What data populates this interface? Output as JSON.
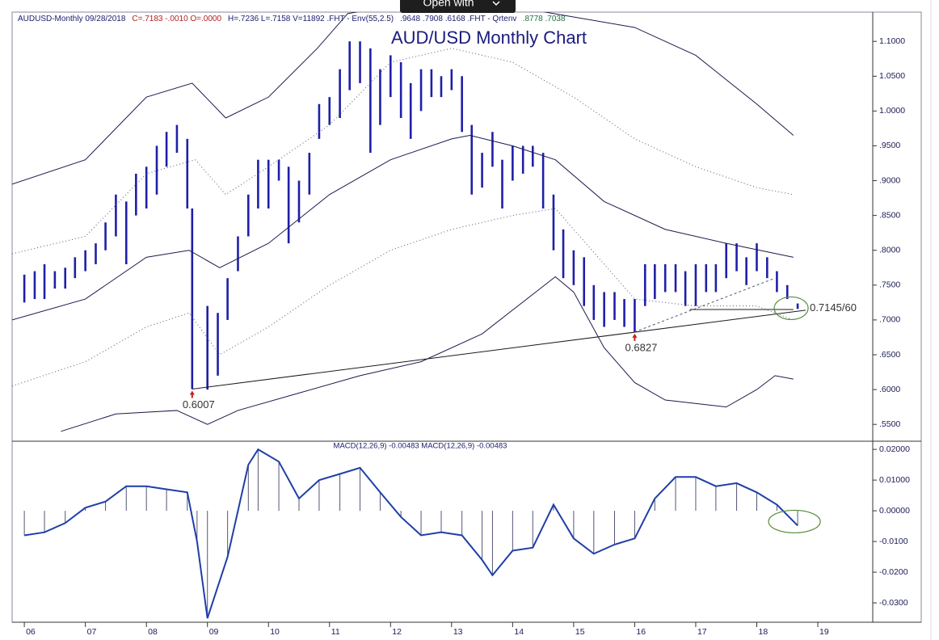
{
  "overlay": {
    "button": "Open with"
  },
  "chart_data": [
    {
      "type": "ohlc",
      "title": "AUD/USD Monthly Chart",
      "header": [
        {
          "text": "AUDUSD-Monthly  09/28/2018",
          "color": "#1b1b6e"
        },
        {
          "text": "C=.7183  -.0010  O=.0000",
          "color": "#b02020"
        },
        {
          "text": "H=.7236  L=.7158  V=11892  .FHT - Env(55,2.5)",
          "color": "#1b1b6e"
        },
        {
          "text": ".9648   .7908   .6168  .FHT - Qrtenv",
          "color": "#1b1b6e"
        },
        {
          "text": ".8778   .7038",
          "color": "#207040"
        }
      ],
      "x": [
        2006.0,
        2006.17,
        2006.33,
        2006.5,
        2006.67,
        2006.83,
        2007.0,
        2007.17,
        2007.33,
        2007.5,
        2007.67,
        2007.83,
        2008.0,
        2008.17,
        2008.33,
        2008.5,
        2008.67,
        2008.75,
        2009.0,
        2009.17,
        2009.33,
        2009.5,
        2009.67,
        2009.83,
        2010.0,
        2010.17,
        2010.33,
        2010.5,
        2010.67,
        2010.83,
        2011.0,
        2011.17,
        2011.33,
        2011.5,
        2011.67,
        2011.83,
        2012.0,
        2012.17,
        2012.33,
        2012.5,
        2012.67,
        2012.83,
        2013.0,
        2013.17,
        2013.33,
        2013.5,
        2013.67,
        2013.83,
        2014.0,
        2014.17,
        2014.33,
        2014.5,
        2014.67,
        2014.83,
        2015.0,
        2015.17,
        2015.33,
        2015.5,
        2015.67,
        2015.83,
        2016.0,
        2016.17,
        2016.33,
        2016.5,
        2016.67,
        2016.83,
        2017.0,
        2017.17,
        2017.33,
        2017.5,
        2017.67,
        2017.83,
        2018.0,
        2018.17,
        2018.33,
        2018.5,
        2018.67
      ],
      "high": [
        0.765,
        0.77,
        0.78,
        0.77,
        0.775,
        0.79,
        0.8,
        0.81,
        0.84,
        0.88,
        0.87,
        0.91,
        0.92,
        0.95,
        0.97,
        0.98,
        0.96,
        0.86,
        0.72,
        0.71,
        0.76,
        0.82,
        0.88,
        0.93,
        0.93,
        0.93,
        0.92,
        0.9,
        0.94,
        1.01,
        1.02,
        1.06,
        1.1,
        1.1,
        1.09,
        1.06,
        1.08,
        1.07,
        1.04,
        1.06,
        1.06,
        1.05,
        1.06,
        1.05,
        0.98,
        0.94,
        0.97,
        0.93,
        0.95,
        0.95,
        0.95,
        0.94,
        0.88,
        0.83,
        0.8,
        0.79,
        0.75,
        0.74,
        0.74,
        0.73,
        0.73,
        0.78,
        0.78,
        0.78,
        0.78,
        0.77,
        0.78,
        0.78,
        0.78,
        0.81,
        0.81,
        0.79,
        0.81,
        0.79,
        0.77,
        0.75,
        0.7236
      ],
      "low": [
        0.725,
        0.73,
        0.73,
        0.745,
        0.745,
        0.76,
        0.77,
        0.78,
        0.8,
        0.82,
        0.78,
        0.85,
        0.86,
        0.88,
        0.92,
        0.94,
        0.86,
        0.6007,
        0.6,
        0.62,
        0.7,
        0.77,
        0.82,
        0.86,
        0.86,
        0.9,
        0.81,
        0.84,
        0.88,
        0.96,
        0.98,
        0.99,
        1.03,
        1.04,
        0.94,
        0.98,
        1.02,
        0.99,
        0.96,
        1.0,
        1.02,
        1.02,
        1.03,
        0.97,
        0.88,
        0.89,
        0.92,
        0.86,
        0.9,
        0.91,
        0.92,
        0.86,
        0.8,
        0.76,
        0.75,
        0.72,
        0.7,
        0.69,
        0.7,
        0.69,
        0.6827,
        0.72,
        0.73,
        0.74,
        0.74,
        0.72,
        0.72,
        0.74,
        0.74,
        0.76,
        0.77,
        0.75,
        0.77,
        0.76,
        0.74,
        0.73,
        0.7158
      ],
      "color": "#1f1fa8",
      "lines": [
        {
          "x": [
            2005.8,
            2007.0,
            2008.0,
            2008.75,
            2009.3,
            2010.0,
            2010.8,
            2011.3,
            2012.0,
            2013.0,
            2014.0,
            2016.0,
            2017.0,
            2018.0,
            2018.6
          ],
          "values": [
            0.895,
            0.93,
            1.02,
            1.04,
            0.99,
            1.02,
            1.09,
            1.14,
            1.15,
            1.15,
            1.15,
            1.12,
            1.08,
            1.01,
            0.965
          ],
          "color": "#1b1b4e",
          "dash": "none"
        },
        {
          "x": [
            2005.8,
            2007.0,
            2008.0,
            2008.7,
            2009.2,
            2010.0,
            2011.0,
            2012.0,
            2013.0,
            2013.3,
            2014.0,
            2014.7,
            2015.5,
            2016.5,
            2017.5,
            2018.6
          ],
          "values": [
            0.7,
            0.73,
            0.79,
            0.8,
            0.775,
            0.81,
            0.88,
            0.93,
            0.96,
            0.965,
            0.95,
            0.93,
            0.87,
            0.83,
            0.81,
            0.79
          ],
          "color": "#1b1b4e",
          "dash": "none"
        },
        {
          "x": [
            2006.6,
            2007.5,
            2008.5,
            2009.0,
            2009.5,
            2010.5,
            2011.5,
            2012.5,
            2013.5,
            2014.7,
            2015.0,
            2015.5,
            2016.0,
            2016.5,
            2017.5,
            2018.0,
            2018.3,
            2018.6
          ],
          "values": [
            0.54,
            0.565,
            0.57,
            0.55,
            0.57,
            0.595,
            0.62,
            0.64,
            0.68,
            0.762,
            0.74,
            0.66,
            0.61,
            0.585,
            0.575,
            0.6,
            0.62,
            0.615
          ],
          "color": "#1b1b4e",
          "dash": "none"
        },
        {
          "x": [
            2005.8,
            2007.0,
            2008.0,
            2008.8,
            2009.3,
            2010.0,
            2011.0,
            2012.0,
            2013.0,
            2014.0,
            2015.0,
            2016.0,
            2017.0,
            2018.0,
            2018.6
          ],
          "values": [
            0.795,
            0.82,
            0.91,
            0.93,
            0.88,
            0.92,
            0.98,
            1.07,
            1.09,
            1.07,
            1.02,
            0.96,
            0.92,
            0.89,
            0.88
          ],
          "color": "#555577",
          "dash": "1 3"
        },
        {
          "x": [
            2005.8,
            2007.0,
            2008.0,
            2008.7,
            2009.2,
            2010.0,
            2011.0,
            2012.0,
            2013.0,
            2014.0,
            2014.7,
            2015.5,
            2016.0,
            2017.0,
            2018.0,
            2018.6
          ],
          "values": [
            0.605,
            0.64,
            0.69,
            0.71,
            0.65,
            0.69,
            0.75,
            0.8,
            0.83,
            0.85,
            0.86,
            0.78,
            0.73,
            0.72,
            0.72,
            0.7
          ],
          "color": "#555577",
          "dash": "1 3"
        },
        {
          "x": [
            2008.75,
            2018.8
          ],
          "values": [
            0.6007,
            0.714
          ],
          "color": "#1b1b1b",
          "dash": "none"
        },
        {
          "x": [
            2016.9,
            2018.6
          ],
          "values": [
            0.715,
            0.715
          ],
          "color": "#1b1b1b",
          "dash": "none"
        },
        {
          "x": [
            2016.0,
            2018.3
          ],
          "values": [
            0.6827,
            0.76
          ],
          "color": "#555577",
          "dash": "3 3"
        }
      ],
      "annotations": [
        {
          "label": "0.6007",
          "x": 2008.75,
          "value": 0.6007,
          "position": "below"
        },
        {
          "label": "0.6827",
          "x": 2016.0,
          "value": 0.6827,
          "position": "below"
        },
        {
          "label": "0.7145/60",
          "x": 2018.67,
          "value": 0.7145,
          "position": "right"
        }
      ],
      "xlim": [
        2005.8,
        2019.9
      ],
      "ylim": [
        0.527,
        1.142
      ],
      "yticks": [
        {
          "value": 1.1,
          "label": "1.1000"
        },
        {
          "value": 1.05,
          "label": "1.0500"
        },
        {
          "value": 1.0,
          "label": "1.0000"
        },
        {
          "value": 0.95,
          "label": ".9500"
        },
        {
          "value": 0.9,
          "label": ".9000"
        },
        {
          "value": 0.85,
          "label": ".8500"
        },
        {
          "value": 0.8,
          "label": ".8000"
        },
        {
          "value": 0.75,
          "label": ".7500"
        },
        {
          "value": 0.7,
          "label": ".7000"
        },
        {
          "value": 0.65,
          "label": ".6500"
        },
        {
          "value": 0.6,
          "label": ".6000"
        },
        {
          "value": 0.55,
          "label": ".5500"
        }
      ]
    },
    {
      "type": "macd",
      "title": "MACD(12,26,9)  -0.00483  MACD(12,26,9)  -0.00483",
      "x": [
        2006.0,
        2006.33,
        2006.67,
        2007.0,
        2007.33,
        2007.67,
        2008.0,
        2008.33,
        2008.67,
        2008.83,
        2009.0,
        2009.33,
        2009.67,
        2009.83,
        2010.17,
        2010.5,
        2010.83,
        2011.17,
        2011.5,
        2011.83,
        2012.17,
        2012.5,
        2012.83,
        2013.17,
        2013.5,
        2013.67,
        2014.0,
        2014.33,
        2014.67,
        2015.0,
        2015.33,
        2015.67,
        2016.0,
        2016.33,
        2016.67,
        2017.0,
        2017.33,
        2017.67,
        2018.0,
        2018.33,
        2018.67
      ],
      "values": [
        -0.008,
        -0.007,
        -0.004,
        0.001,
        0.003,
        0.008,
        0.008,
        0.007,
        0.006,
        -0.01,
        -0.035,
        -0.015,
        0.015,
        0.02,
        0.016,
        0.004,
        0.01,
        0.012,
        0.014,
        0.006,
        -0.002,
        -0.008,
        -0.007,
        -0.008,
        -0.016,
        -0.021,
        -0.013,
        -0.012,
        0.002,
        -0.009,
        -0.014,
        -0.011,
        -0.009,
        0.004,
        0.011,
        0.011,
        0.008,
        0.009,
        0.006,
        0.002,
        -0.00483
      ],
      "color": "#1f3fa8",
      "xlim": [
        2005.8,
        2019.9
      ],
      "ylim": [
        -0.0363,
        0.0224
      ],
      "yticks": [
        {
          "value": 0.02,
          "label": "0.02000"
        },
        {
          "value": 0.01,
          "label": "0.01000"
        },
        {
          "value": 0,
          "label": "0.00000"
        },
        {
          "value": -0.01,
          "label": "-0.0100"
        },
        {
          "value": -0.02,
          "label": "-0.0200"
        },
        {
          "value": -0.03,
          "label": "-0.0300"
        }
      ],
      "xticks": [
        {
          "value": 2006,
          "label": "06"
        },
        {
          "value": 2007,
          "label": "07"
        },
        {
          "value": 2008,
          "label": "08"
        },
        {
          "value": 2009,
          "label": "09"
        },
        {
          "value": 2010,
          "label": "10"
        },
        {
          "value": 2011,
          "label": "11"
        },
        {
          "value": 2012,
          "label": "12"
        },
        {
          "value": 2013,
          "label": "13"
        },
        {
          "value": 2014,
          "label": "14"
        },
        {
          "value": 2015,
          "label": "15"
        },
        {
          "value": 2016,
          "label": "16"
        },
        {
          "value": 2017,
          "label": "17"
        },
        {
          "value": 2018,
          "label": "18"
        },
        {
          "value": 2019,
          "label": "19"
        }
      ]
    }
  ]
}
